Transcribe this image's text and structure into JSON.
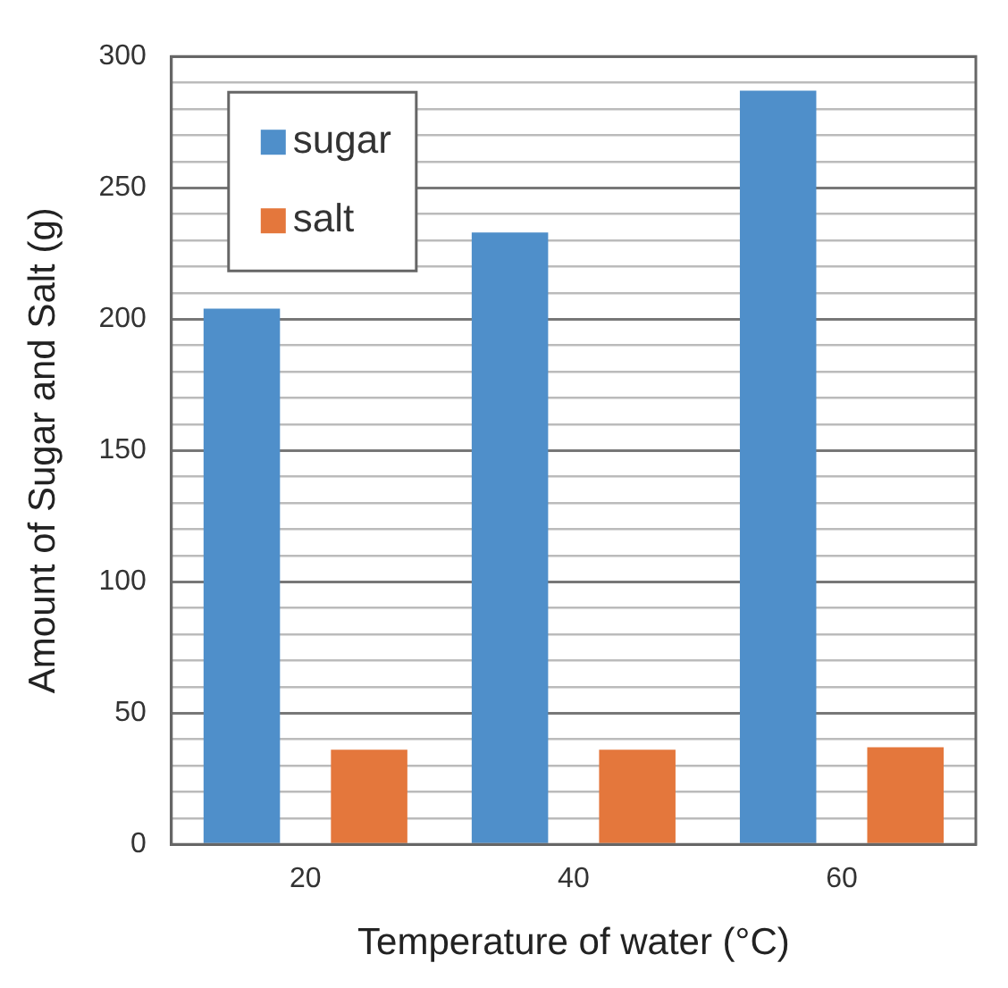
{
  "chart_data": {
    "type": "bar",
    "xlabel": "Temperature of water (°C)",
    "ylabel": "Amount of Sugar and Salt (g)",
    "categories": [
      "20",
      "40",
      "60"
    ],
    "series": [
      {
        "name": "sugar",
        "color": "#4f8fca",
        "values": [
          204,
          233,
          287
        ]
      },
      {
        "name": "salt",
        "color": "#e4773c",
        "values": [
          36,
          36,
          37
        ]
      }
    ],
    "ylim": [
      0,
      300
    ],
    "yticks": [
      0,
      {
        "value": 10,
        "label": null
      },
      {
        "value": 20,
        "label": null
      },
      {
        "value": 30,
        "label": null
      },
      {
        "value": 40,
        "label": null
      },
      50,
      {
        "value": 60,
        "label": null
      },
      {
        "value": 70,
        "label": null
      },
      {
        "value": 80,
        "label": null
      },
      {
        "value": 90,
        "label": null
      },
      100,
      {
        "value": 110,
        "label": null
      },
      {
        "value": 120,
        "label": null
      },
      {
        "value": 130,
        "label": null
      },
      {
        "value": 140,
        "label": null
      },
      150,
      {
        "value": 160,
        "label": null
      },
      {
        "value": 170,
        "label": null
      },
      {
        "value": 180,
        "label": null
      },
      {
        "value": 190,
        "label": null
      },
      200,
      {
        "value": 210,
        "label": null
      },
      {
        "value": 220,
        "label": null
      },
      {
        "value": 230,
        "label": null
      },
      {
        "value": 240,
        "label": null
      },
      250,
      {
        "value": 260,
        "label": null
      },
      {
        "value": 270,
        "label": null
      },
      {
        "value": 280,
        "label": null
      },
      {
        "value": 290,
        "label": null
      },
      300
    ],
    "grid": "y",
    "legend": "top left"
  }
}
